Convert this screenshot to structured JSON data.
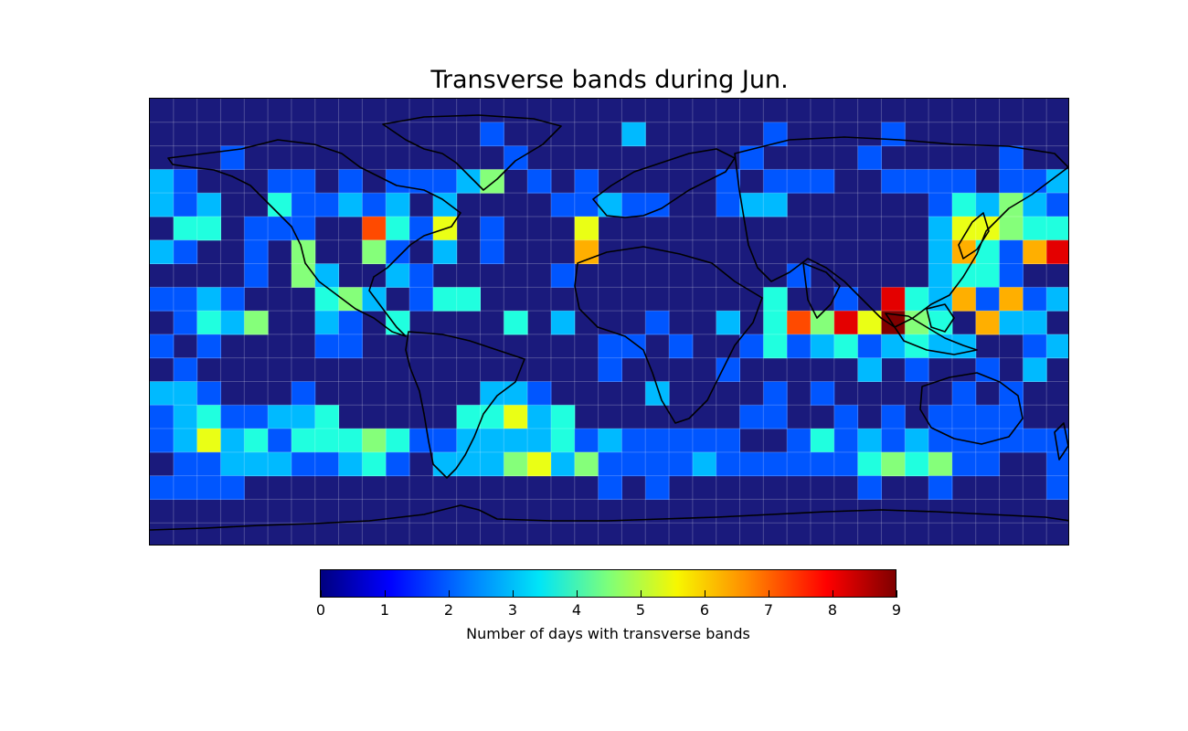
{
  "chart_data": {
    "type": "heatmap",
    "title": "Transverse bands during Jun.",
    "colorbar": {
      "label": "Number of days with transverse bands",
      "ticks": [
        "0",
        "1",
        "2",
        "3",
        "4",
        "5",
        "6",
        "7",
        "8",
        "9"
      ],
      "range": [
        0,
        9
      ],
      "colormap": "jet"
    },
    "grid": {
      "columns": 39,
      "rows": 19,
      "lon_range": [
        -180,
        180
      ],
      "lat_range": [
        -90,
        90
      ],
      "cell_size_deg": 9.47
    },
    "cells": [
      [
        14,
        1,
        1
      ],
      [
        20,
        1,
        2
      ],
      [
        26,
        1,
        1
      ],
      [
        31,
        1,
        1
      ],
      [
        3,
        2,
        1
      ],
      [
        15,
        2,
        1
      ],
      [
        25,
        2,
        1
      ],
      [
        30,
        2,
        1
      ],
      [
        36,
        2,
        1
      ],
      [
        0,
        3,
        2
      ],
      [
        1,
        3,
        1
      ],
      [
        5,
        3,
        1
      ],
      [
        6,
        3,
        1
      ],
      [
        8,
        3,
        1
      ],
      [
        10,
        3,
        1
      ],
      [
        11,
        3,
        1
      ],
      [
        12,
        3,
        1
      ],
      [
        13,
        3,
        2
      ],
      [
        14,
        3,
        4
      ],
      [
        16,
        3,
        1
      ],
      [
        18,
        3,
        1
      ],
      [
        24,
        3,
        1
      ],
      [
        26,
        3,
        1
      ],
      [
        27,
        3,
        1
      ],
      [
        28,
        3,
        1
      ],
      [
        31,
        3,
        1
      ],
      [
        32,
        3,
        1
      ],
      [
        33,
        3,
        1
      ],
      [
        34,
        3,
        1
      ],
      [
        36,
        3,
        1
      ],
      [
        37,
        3,
        1
      ],
      [
        38,
        3,
        2
      ],
      [
        0,
        4,
        2
      ],
      [
        1,
        4,
        1
      ],
      [
        2,
        4,
        2
      ],
      [
        5,
        4,
        3
      ],
      [
        6,
        4,
        1
      ],
      [
        7,
        4,
        1
      ],
      [
        8,
        4,
        2
      ],
      [
        9,
        4,
        1
      ],
      [
        10,
        4,
        2
      ],
      [
        12,
        4,
        2
      ],
      [
        17,
        4,
        1
      ],
      [
        18,
        4,
        1
      ],
      [
        19,
        4,
        2
      ],
      [
        20,
        4,
        1
      ],
      [
        21,
        4,
        1
      ],
      [
        24,
        4,
        1
      ],
      [
        25,
        4,
        2
      ],
      [
        26,
        4,
        2
      ],
      [
        33,
        4,
        1
      ],
      [
        34,
        4,
        3
      ],
      [
        35,
        4,
        2
      ],
      [
        36,
        4,
        4
      ],
      [
        37,
        4,
        2
      ],
      [
        38,
        4,
        1
      ],
      [
        1,
        5,
        3
      ],
      [
        2,
        5,
        3
      ],
      [
        4,
        5,
        1
      ],
      [
        5,
        5,
        1
      ],
      [
        6,
        5,
        1
      ],
      [
        9,
        5,
        7
      ],
      [
        10,
        5,
        3
      ],
      [
        11,
        5,
        1
      ],
      [
        12,
        5,
        5
      ],
      [
        14,
        5,
        1
      ],
      [
        18,
        5,
        5
      ],
      [
        33,
        5,
        2
      ],
      [
        34,
        5,
        5
      ],
      [
        35,
        5,
        5
      ],
      [
        36,
        5,
        4
      ],
      [
        37,
        5,
        3
      ],
      [
        38,
        5,
        3
      ],
      [
        0,
        6,
        2
      ],
      [
        1,
        6,
        1
      ],
      [
        4,
        6,
        1
      ],
      [
        6,
        6,
        4
      ],
      [
        9,
        6,
        4
      ],
      [
        10,
        6,
        1
      ],
      [
        12,
        6,
        2
      ],
      [
        14,
        6,
        1
      ],
      [
        18,
        6,
        6
      ],
      [
        33,
        6,
        2
      ],
      [
        34,
        6,
        6
      ],
      [
        35,
        6,
        3
      ],
      [
        36,
        6,
        1
      ],
      [
        37,
        6,
        6
      ],
      [
        38,
        6,
        8
      ],
      [
        4,
        7,
        1
      ],
      [
        6,
        7,
        4
      ],
      [
        7,
        7,
        2
      ],
      [
        10,
        7,
        2
      ],
      [
        11,
        7,
        1
      ],
      [
        17,
        7,
        1
      ],
      [
        27,
        7,
        1
      ],
      [
        33,
        7,
        2
      ],
      [
        34,
        7,
        3
      ],
      [
        35,
        7,
        3
      ],
      [
        36,
        7,
        1
      ],
      [
        0,
        8,
        1
      ],
      [
        1,
        8,
        1
      ],
      [
        2,
        8,
        2
      ],
      [
        3,
        8,
        1
      ],
      [
        7,
        8,
        3
      ],
      [
        8,
        8,
        4
      ],
      [
        9,
        8,
        2
      ],
      [
        11,
        8,
        1
      ],
      [
        12,
        8,
        3
      ],
      [
        13,
        8,
        3
      ],
      [
        26,
        8,
        3
      ],
      [
        29,
        8,
        1
      ],
      [
        31,
        8,
        8
      ],
      [
        32,
        8,
        3
      ],
      [
        33,
        8,
        2
      ],
      [
        34,
        8,
        6
      ],
      [
        35,
        8,
        1
      ],
      [
        36,
        8,
        6
      ],
      [
        37,
        8,
        1
      ],
      [
        38,
        8,
        2
      ],
      [
        1,
        9,
        1
      ],
      [
        2,
        9,
        3
      ],
      [
        3,
        9,
        2
      ],
      [
        4,
        9,
        4
      ],
      [
        7,
        9,
        2
      ],
      [
        8,
        9,
        1
      ],
      [
        10,
        9,
        3
      ],
      [
        15,
        9,
        3
      ],
      [
        17,
        9,
        2
      ],
      [
        21,
        9,
        1
      ],
      [
        24,
        9,
        2
      ],
      [
        26,
        9,
        3
      ],
      [
        27,
        9,
        7
      ],
      [
        28,
        9,
        4
      ],
      [
        29,
        9,
        8
      ],
      [
        30,
        9,
        5
      ],
      [
        31,
        9,
        9
      ],
      [
        32,
        9,
        4
      ],
      [
        33,
        9,
        3
      ],
      [
        35,
        9,
        6
      ],
      [
        36,
        9,
        2
      ],
      [
        37,
        9,
        2
      ],
      [
        0,
        10,
        1
      ],
      [
        2,
        10,
        1
      ],
      [
        7,
        10,
        1
      ],
      [
        8,
        10,
        1
      ],
      [
        19,
        10,
        1
      ],
      [
        20,
        10,
        1
      ],
      [
        22,
        10,
        1
      ],
      [
        25,
        10,
        1
      ],
      [
        26,
        10,
        3
      ],
      [
        27,
        10,
        1
      ],
      [
        28,
        10,
        2
      ],
      [
        29,
        10,
        3
      ],
      [
        30,
        10,
        1
      ],
      [
        31,
        10,
        2
      ],
      [
        32,
        10,
        3
      ],
      [
        33,
        10,
        2
      ],
      [
        34,
        10,
        2
      ],
      [
        37,
        10,
        1
      ],
      [
        38,
        10,
        2
      ],
      [
        1,
        11,
        1
      ],
      [
        19,
        11,
        1
      ],
      [
        24,
        11,
        1
      ],
      [
        30,
        11,
        2
      ],
      [
        32,
        11,
        1
      ],
      [
        35,
        11,
        1
      ],
      [
        37,
        11,
        2
      ],
      [
        0,
        12,
        2
      ],
      [
        1,
        12,
        2
      ],
      [
        2,
        12,
        1
      ],
      [
        6,
        12,
        1
      ],
      [
        14,
        12,
        2
      ],
      [
        15,
        12,
        2
      ],
      [
        16,
        12,
        1
      ],
      [
        21,
        12,
        2
      ],
      [
        26,
        12,
        1
      ],
      [
        28,
        12,
        1
      ],
      [
        34,
        12,
        1
      ],
      [
        36,
        12,
        1
      ],
      [
        0,
        13,
        1
      ],
      [
        1,
        13,
        2
      ],
      [
        2,
        13,
        3
      ],
      [
        3,
        13,
        1
      ],
      [
        4,
        13,
        1
      ],
      [
        5,
        13,
        2
      ],
      [
        6,
        13,
        2
      ],
      [
        7,
        13,
        3
      ],
      [
        13,
        13,
        3
      ],
      [
        14,
        13,
        3
      ],
      [
        15,
        13,
        5
      ],
      [
        16,
        13,
        2
      ],
      [
        17,
        13,
        3
      ],
      [
        25,
        13,
        1
      ],
      [
        26,
        13,
        1
      ],
      [
        29,
        13,
        1
      ],
      [
        31,
        13,
        1
      ],
      [
        33,
        13,
        1
      ],
      [
        34,
        13,
        1
      ],
      [
        35,
        13,
        1
      ],
      [
        36,
        13,
        1
      ],
      [
        0,
        14,
        1
      ],
      [
        1,
        14,
        2
      ],
      [
        2,
        14,
        5
      ],
      [
        3,
        14,
        2
      ],
      [
        4,
        14,
        3
      ],
      [
        5,
        14,
        1
      ],
      [
        6,
        14,
        3
      ],
      [
        7,
        14,
        3
      ],
      [
        8,
        14,
        3
      ],
      [
        9,
        14,
        4
      ],
      [
        10,
        14,
        3
      ],
      [
        11,
        14,
        1
      ],
      [
        12,
        14,
        1
      ],
      [
        13,
        14,
        2
      ],
      [
        14,
        14,
        2
      ],
      [
        15,
        14,
        2
      ],
      [
        16,
        14,
        2
      ],
      [
        17,
        14,
        3
      ],
      [
        18,
        14,
        1
      ],
      [
        19,
        14,
        2
      ],
      [
        20,
        14,
        1
      ],
      [
        21,
        14,
        1
      ],
      [
        22,
        14,
        1
      ],
      [
        23,
        14,
        1
      ],
      [
        24,
        14,
        1
      ],
      [
        27,
        14,
        1
      ],
      [
        28,
        14,
        3
      ],
      [
        29,
        14,
        1
      ],
      [
        30,
        14,
        2
      ],
      [
        31,
        14,
        1
      ],
      [
        32,
        14,
        2
      ],
      [
        33,
        14,
        1
      ],
      [
        34,
        14,
        1
      ],
      [
        35,
        14,
        1
      ],
      [
        36,
        14,
        1
      ],
      [
        37,
        14,
        1
      ],
      [
        38,
        14,
        1
      ],
      [
        1,
        15,
        1
      ],
      [
        2,
        15,
        1
      ],
      [
        3,
        15,
        2
      ],
      [
        4,
        15,
        2
      ],
      [
        5,
        15,
        2
      ],
      [
        6,
        15,
        1
      ],
      [
        7,
        15,
        1
      ],
      [
        8,
        15,
        2
      ],
      [
        9,
        15,
        3
      ],
      [
        10,
        15,
        1
      ],
      [
        12,
        15,
        2
      ],
      [
        13,
        15,
        2
      ],
      [
        14,
        15,
        2
      ],
      [
        15,
        15,
        4
      ],
      [
        16,
        15,
        5
      ],
      [
        17,
        15,
        2
      ],
      [
        18,
        15,
        4
      ],
      [
        19,
        15,
        1
      ],
      [
        20,
        15,
        1
      ],
      [
        21,
        15,
        1
      ],
      [
        22,
        15,
        1
      ],
      [
        23,
        15,
        2
      ],
      [
        24,
        15,
        1
      ],
      [
        25,
        15,
        1
      ],
      [
        26,
        15,
        1
      ],
      [
        27,
        15,
        1
      ],
      [
        28,
        15,
        1
      ],
      [
        29,
        15,
        1
      ],
      [
        30,
        15,
        3
      ],
      [
        31,
        15,
        4
      ],
      [
        32,
        15,
        3
      ],
      [
        33,
        15,
        4
      ],
      [
        34,
        15,
        1
      ],
      [
        35,
        15,
        1
      ],
      [
        38,
        15,
        1
      ],
      [
        0,
        16,
        1
      ],
      [
        1,
        16,
        1
      ],
      [
        2,
        16,
        1
      ],
      [
        3,
        16,
        1
      ],
      [
        19,
        16,
        1
      ],
      [
        21,
        16,
        1
      ],
      [
        30,
        16,
        1
      ],
      [
        33,
        16,
        1
      ],
      [
        38,
        16,
        1
      ]
    ],
    "xlabel": "",
    "ylabel": ""
  }
}
